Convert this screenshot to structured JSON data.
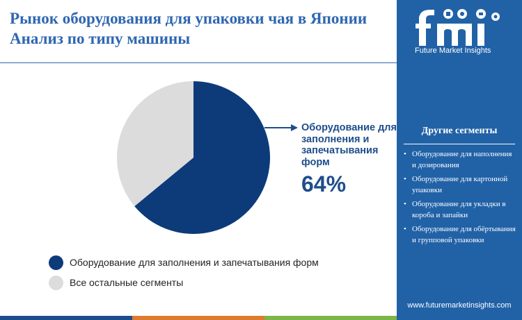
{
  "title": "Рынок оборудования для упаковки чая в Японии Анализ по типу машины",
  "chart_data": {
    "type": "pie",
    "categories": [
      "Оборудование для заполнения и запечатывания форм",
      "Все остальные сегменты"
    ],
    "values": [
      64,
      36
    ],
    "colors": [
      "#0d3b7a",
      "#dcdcdc"
    ],
    "callout": {
      "label": "Оборудование для заполнения и запечатывания форм",
      "value": "64%"
    },
    "legend_placement": "bottom-left"
  },
  "sidebar": {
    "logo_icon": "fmi-logo-icon",
    "logo_text": "Future Market Insights",
    "segments_title": "Другие сегменты",
    "segments": [
      "Оборудование для наполнения и дозирования",
      "Оборудование для картонной упаковки",
      "Оборудование для укладки в короба и запайки",
      "Оборудование для обёртывания и групповой упаковки"
    ],
    "website": "www.futuremarketinsights.com"
  },
  "colors": {
    "accent": "#2f67b1",
    "sidebar_bg": "#2162a7",
    "stripe": [
      "#1e4d8c",
      "#e07a2f",
      "#7ab648",
      "#2162a7"
    ]
  }
}
